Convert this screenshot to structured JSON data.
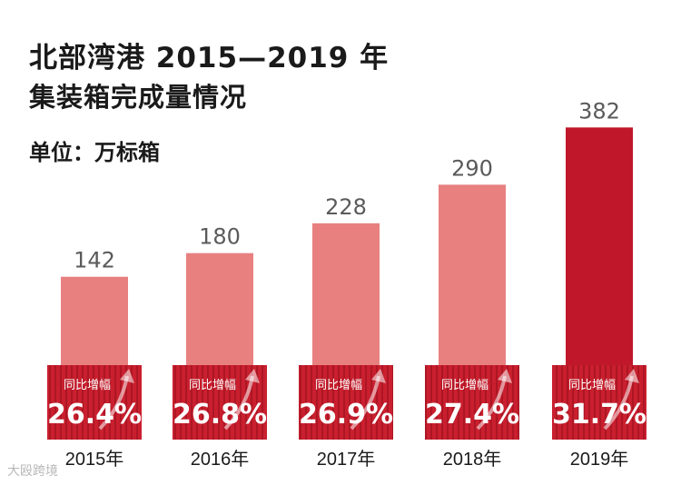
{
  "chart_data": {
    "type": "bar",
    "title": "北部湾港 2015—2019 年",
    "subtitle": "集装箱完成量情况",
    "unit": "单位：万标箱",
    "categories": [
      "2015年",
      "2016年",
      "2017年",
      "2018年",
      "2019年"
    ],
    "values": [
      142,
      180,
      228,
      290,
      382
    ],
    "value_labels": [
      "142",
      "180",
      "228",
      "290",
      "382"
    ],
    "yoy_title": "同比增幅",
    "yoy_values": [
      "26.4%",
      "26.8%",
      "26.9%",
      "27.4%",
      "31.7%"
    ],
    "colors": {
      "bar": "#e88080",
      "bar_highlight": "#c0182a",
      "box": "#c91f2e"
    }
  },
  "watermark": "大殴跨境"
}
